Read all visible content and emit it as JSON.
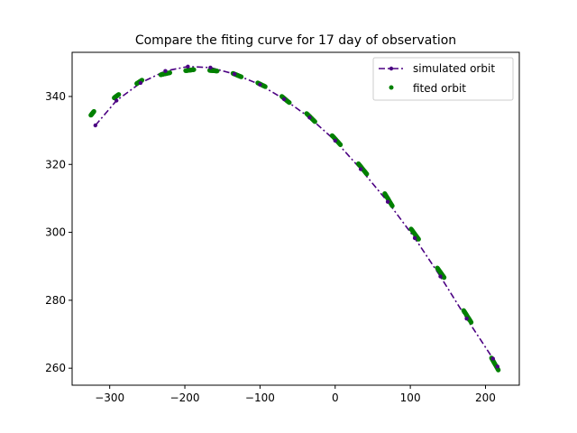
{
  "chart_data": {
    "type": "line",
    "title": "Compare the fiting curve for 17 day of observation",
    "xlabel": "",
    "ylabel": "",
    "xlim": [
      -350,
      245
    ],
    "ylim": [
      255,
      353
    ],
    "xticks": [
      -300,
      -200,
      -100,
      0,
      100,
      200
    ],
    "yticks": [
      260,
      280,
      300,
      320,
      340
    ],
    "xtick_labels": [
      "−300",
      "−200",
      "−100",
      "0",
      "100",
      "200"
    ],
    "ytick_labels": [
      "260",
      "280",
      "300",
      "320",
      "340"
    ],
    "legend": {
      "position": "top-right"
    },
    "colors": {
      "simulated": "#4b0082",
      "fitted": "#008000"
    },
    "series": [
      {
        "name": "simulated orbit",
        "style": "dashdot-with-dots",
        "x": [
          -319,
          -291,
          -259,
          -226,
          -196,
          -166,
          -134,
          -100,
          -68,
          -34,
          0,
          34,
          70,
          106,
          140,
          175,
          210,
          216
        ],
        "y": [
          331.5,
          338.8,
          344.0,
          347.5,
          348.8,
          348.5,
          346.6,
          343.5,
          339.2,
          333.8,
          327.0,
          318.6,
          309.0,
          298.3,
          287.0,
          274.6,
          262.8,
          260.5
        ]
      },
      {
        "name": "fited orbit",
        "style": "dots",
        "segments": [
          {
            "x": [
              -325,
              -321
            ],
            "y": [
              334.5,
              335.6
            ]
          },
          {
            "x": [
              -294,
              -288
            ],
            "y": [
              339.6,
              340.6
            ]
          },
          {
            "x": [
              -264,
              -257
            ],
            "y": [
              343.8,
              344.8
            ]
          },
          {
            "x": [
              -232,
              -220
            ],
            "y": [
              346.4,
              347.0
            ]
          },
          {
            "x": [
              -199,
              -188
            ],
            "y": [
              347.6,
              347.9
            ]
          },
          {
            "x": [
              -167,
              -157
            ],
            "y": [
              347.7,
              347.5
            ]
          },
          {
            "x": [
              -136,
              -125
            ],
            "y": [
              346.8,
              345.8
            ]
          },
          {
            "x": [
              -103,
              -93
            ],
            "y": [
              344.0,
              342.9
            ]
          },
          {
            "x": [
              -71,
              -61
            ],
            "y": [
              340.0,
              338.2
            ]
          },
          {
            "x": [
              -38,
              -27
            ],
            "y": [
              335.0,
              332.6
            ]
          },
          {
            "x": [
              -4,
              7
            ],
            "y": [
              328.5,
              325.8
            ]
          },
          {
            "x": [
              31,
              42
            ],
            "y": [
              320.2,
              317.2
            ]
          },
          {
            "x": [
              66,
              76
            ],
            "y": [
              311.4,
              307.8
            ]
          },
          {
            "x": [
              101,
              111
            ],
            "y": [
              301.0,
              298.0
            ]
          },
          {
            "x": [
              136,
              145
            ],
            "y": [
              289.5,
              286.7
            ]
          },
          {
            "x": [
              171,
              181
            ],
            "y": [
              277.0,
              273.5
            ]
          },
          {
            "x": [
              208,
              217
            ],
            "y": [
              263.0,
              259.5
            ]
          }
        ]
      }
    ]
  }
}
